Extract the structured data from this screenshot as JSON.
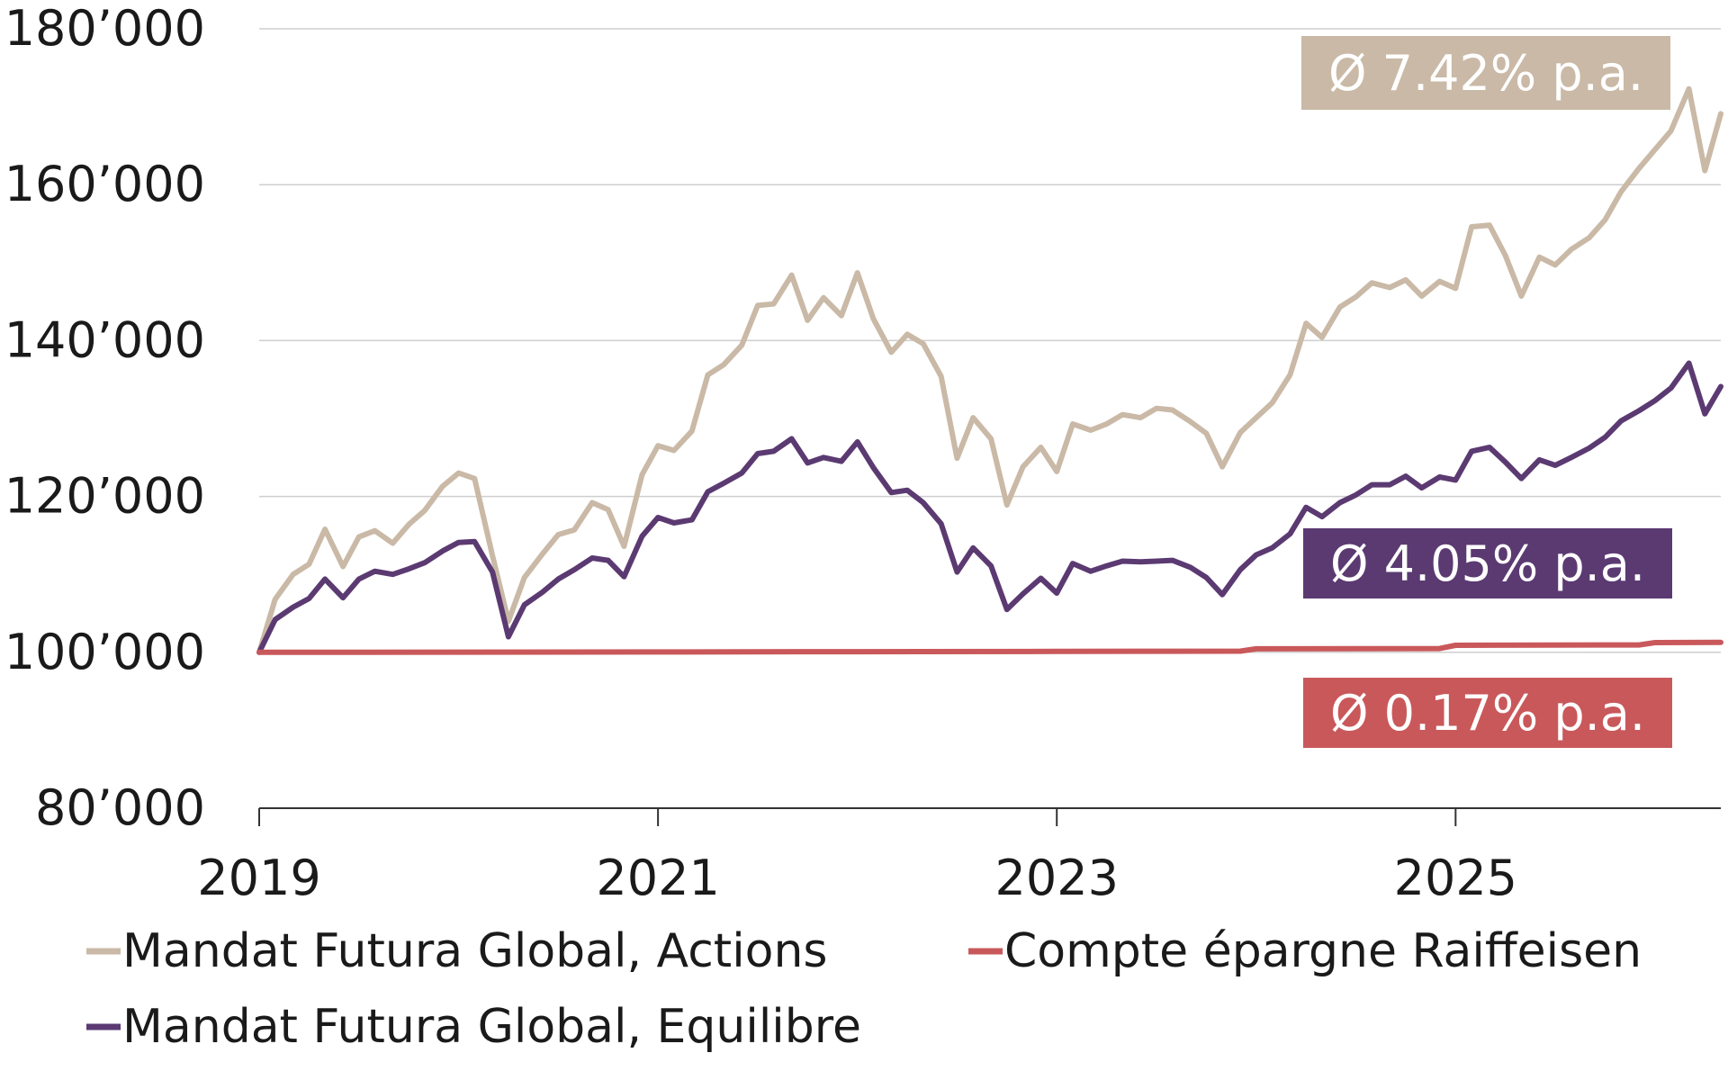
{
  "chart_data": {
    "type": "line",
    "title": "",
    "xlabel": "",
    "ylabel": "",
    "xlim": [
      2019.0,
      2026.33
    ],
    "ylim": [
      80000,
      180000
    ],
    "grid": true,
    "legend_position": "bottom",
    "x_ticks": [
      2019,
      2021,
      2023,
      2025
    ],
    "x_tick_labels": [
      "2019",
      "2021",
      "2023",
      "2025"
    ],
    "y_ticks": [
      80000,
      100000,
      120000,
      140000,
      160000,
      180000
    ],
    "y_tick_labels": [
      "80’000",
      "100’000",
      "120’000",
      "140’000",
      "160’000",
      "180’000"
    ],
    "series": [
      {
        "name": "Mandat Futura Global, Actions",
        "color": "#c9b9a6",
        "annotation": "Ø 7.42% p.a.",
        "x": [
          2019.0,
          2019.08,
          2019.17,
          2019.25,
          2019.33,
          2019.42,
          2019.5,
          2019.58,
          2019.67,
          2019.75,
          2019.83,
          2019.92,
          2020.0,
          2020.08,
          2020.17,
          2020.25,
          2020.33,
          2020.42,
          2020.5,
          2020.58,
          2020.67,
          2020.75,
          2020.83,
          2020.92,
          2021.0,
          2021.08,
          2021.17,
          2021.25,
          2021.33,
          2021.42,
          2021.5,
          2021.58,
          2021.67,
          2021.75,
          2021.83,
          2021.92,
          2022.0,
          2022.08,
          2022.17,
          2022.25,
          2022.33,
          2022.42,
          2022.5,
          2022.58,
          2022.67,
          2022.75,
          2022.83,
          2022.92,
          2023.0,
          2023.08,
          2023.17,
          2023.25,
          2023.33,
          2023.42,
          2023.5,
          2023.58,
          2023.67,
          2023.75,
          2023.83,
          2023.92,
          2024.0,
          2024.08,
          2024.17,
          2024.25,
          2024.33,
          2024.42,
          2024.5,
          2024.58,
          2024.67,
          2024.75,
          2024.83,
          2024.92,
          2025.0,
          2025.08,
          2025.17,
          2025.25,
          2025.33,
          2025.42,
          2025.5,
          2025.58,
          2025.67,
          2025.75,
          2025.83,
          2025.92,
          2026.0,
          2026.08,
          2026.17,
          2026.25,
          2026.33
        ],
        "values": [
          100000,
          106800,
          110000,
          111300,
          115800,
          111000,
          114800,
          115600,
          114000,
          116400,
          118200,
          121300,
          123000,
          122300,
          112400,
          104000,
          109600,
          112600,
          115100,
          115700,
          119200,
          118300,
          113600,
          122800,
          126500,
          125900,
          128400,
          135600,
          136900,
          139400,
          144500,
          144700,
          148400,
          142600,
          145500,
          143200,
          148700,
          142800,
          138500,
          140800,
          139600,
          135400,
          124900,
          130100,
          127400,
          118900,
          123800,
          126300,
          123200,
          129300,
          128500,
          129300,
          130500,
          130100,
          131300,
          131100,
          129600,
          128100,
          123800,
          128200,
          130100,
          132000,
          135600,
          142200,
          140400,
          144300,
          145600,
          147400,
          146800,
          147800,
          145700,
          147600,
          146700,
          154600,
          154800,
          150900,
          145700,
          150700,
          149700,
          151700,
          153200,
          155500,
          159100,
          162100,
          164500,
          166900,
          172300,
          161800,
          169100
        ]
      },
      {
        "name": "Mandat Futura Global, Equilibre",
        "color": "#5b3a72",
        "annotation": "Ø 4.05% p.a.",
        "x": [
          2019.0,
          2019.08,
          2019.17,
          2019.25,
          2019.33,
          2019.42,
          2019.5,
          2019.58,
          2019.67,
          2019.75,
          2019.83,
          2019.92,
          2020.0,
          2020.08,
          2020.17,
          2020.25,
          2020.33,
          2020.42,
          2020.5,
          2020.58,
          2020.67,
          2020.75,
          2020.83,
          2020.92,
          2021.0,
          2021.08,
          2021.17,
          2021.25,
          2021.33,
          2021.42,
          2021.5,
          2021.58,
          2021.67,
          2021.75,
          2021.83,
          2021.92,
          2022.0,
          2022.08,
          2022.17,
          2022.25,
          2022.33,
          2022.42,
          2022.5,
          2022.58,
          2022.67,
          2022.75,
          2022.83,
          2022.92,
          2023.0,
          2023.08,
          2023.17,
          2023.25,
          2023.33,
          2023.42,
          2023.5,
          2023.58,
          2023.67,
          2023.75,
          2023.83,
          2023.92,
          2024.0,
          2024.08,
          2024.17,
          2024.25,
          2024.33,
          2024.42,
          2024.5,
          2024.58,
          2024.67,
          2024.75,
          2024.83,
          2024.92,
          2025.0,
          2025.08,
          2025.17,
          2025.25,
          2025.33,
          2025.42,
          2025.5,
          2025.58,
          2025.67,
          2025.75,
          2025.83,
          2025.92,
          2026.0,
          2026.08,
          2026.17,
          2026.25,
          2026.33
        ],
        "values": [
          100000,
          104200,
          105800,
          106900,
          109400,
          107000,
          109400,
          110400,
          110000,
          110700,
          111500,
          113000,
          114100,
          114200,
          110300,
          102000,
          106100,
          107700,
          109400,
          110600,
          112100,
          111800,
          109700,
          114900,
          117300,
          116600,
          117000,
          120600,
          121700,
          123000,
          125500,
          125800,
          127400,
          124300,
          125000,
          124500,
          127000,
          123700,
          120500,
          120800,
          119200,
          116500,
          110300,
          113400,
          111100,
          105500,
          107500,
          109500,
          107600,
          111400,
          110400,
          111100,
          111700,
          111600,
          111700,
          111800,
          110900,
          109600,
          107400,
          110600,
          112500,
          113400,
          115200,
          118600,
          117400,
          119200,
          120200,
          121500,
          121500,
          122600,
          121100,
          122500,
          122100,
          125800,
          126300,
          124400,
          122300,
          124700,
          124000,
          125000,
          126200,
          127600,
          129700,
          131000,
          132300,
          133900,
          137100,
          130600,
          134100
        ]
      },
      {
        "name": "Compte épargne Raiffeisen",
        "color": "#c9585a",
        "annotation": "Ø 0.17% p.a.",
        "x": [
          2019.0,
          2020.0,
          2021.0,
          2022.0,
          2023.0,
          2023.92,
          2024.0,
          2024.92,
          2025.0,
          2025.92,
          2026.0,
          2026.33
        ],
        "values": [
          100000,
          100020,
          100050,
          100080,
          100120,
          100150,
          100450,
          100480,
          100900,
          100950,
          101250,
          101280
        ]
      }
    ]
  }
}
